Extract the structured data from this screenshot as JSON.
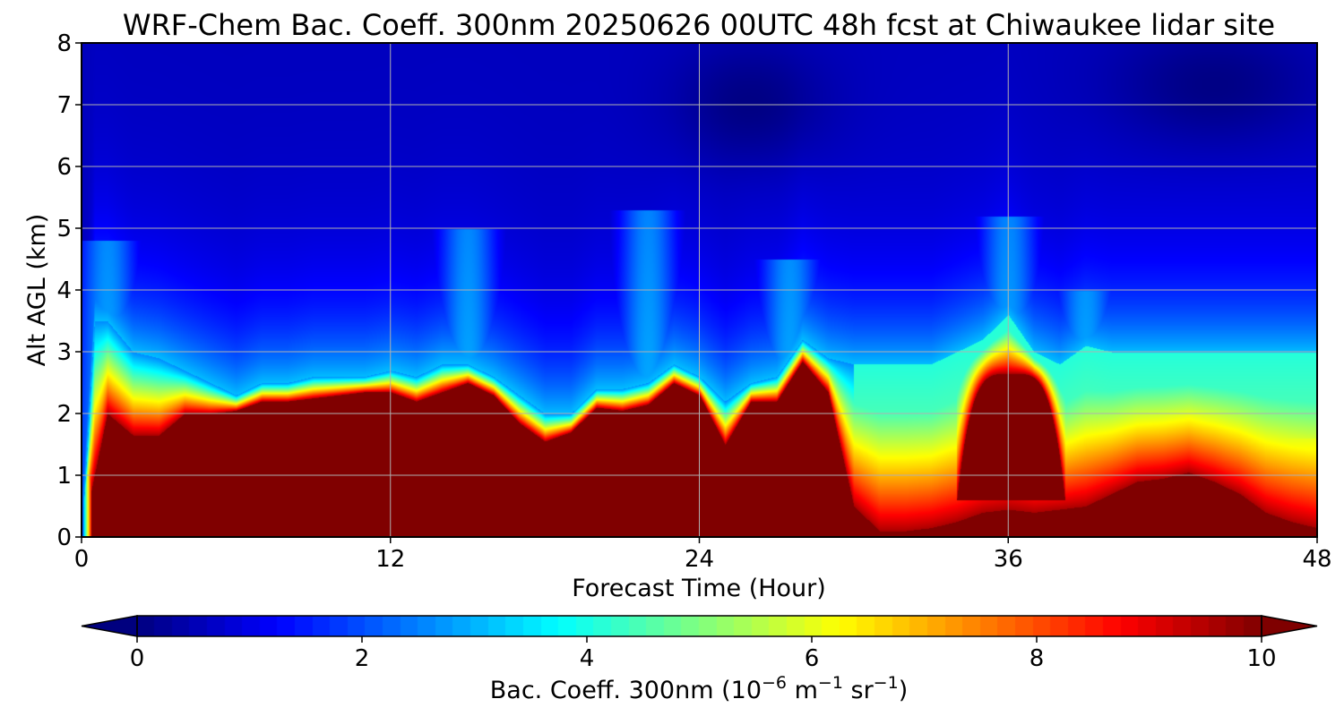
{
  "chart_data": {
    "type": "heatmap",
    "title": "WRF-Chem Bac. Coeff. 300nm  20250626 00UTC 48h fcst at Chiwaukee lidar site",
    "xlabel": "Forecast Time (Hour)",
    "ylabel": "Alt AGL (km)",
    "xlim": [
      0,
      48
    ],
    "ylim": [
      0,
      8
    ],
    "xticks": [
      0,
      12,
      24,
      36,
      48
    ],
    "yticks": [
      0,
      1,
      2,
      3,
      4,
      5,
      6,
      7,
      8
    ],
    "grid": true,
    "colormap": "jet",
    "colorbar": {
      "label_prefix": "Bac. Coeff. 300nm  (10",
      "label_exp1": "−6",
      "label_mid": " m",
      "label_exp2": "−1",
      "label_mid2": " sr",
      "label_exp3": "−1",
      "label_suffix": ")",
      "range": [
        0,
        10
      ],
      "ticks": [
        "0",
        "2",
        "4",
        "6",
        "8",
        "10"
      ],
      "extend": "both",
      "orientation": "horizontal-bottom"
    },
    "description_colors": {
      "low": "#00007f",
      "high": "#7f0000"
    },
    "x": [
      0,
      0.5,
      1,
      2,
      3,
      4,
      5,
      6,
      7,
      8,
      9,
      10,
      11,
      12,
      13,
      14,
      15,
      16,
      17,
      18,
      19,
      20,
      21,
      22,
      23,
      24,
      25,
      26,
      27,
      28,
      29,
      30,
      31,
      32,
      33,
      34,
      35,
      36,
      37,
      38,
      39,
      40,
      41,
      42,
      43,
      44,
      45,
      46,
      47,
      48
    ],
    "boundary_layer_top_km": [
      0.0,
      1.0,
      2.0,
      1.65,
      1.65,
      2.0,
      2.0,
      2.05,
      2.2,
      2.2,
      2.25,
      2.3,
      2.35,
      2.35,
      2.2,
      2.35,
      2.5,
      2.3,
      1.85,
      1.55,
      1.7,
      2.1,
      2.05,
      2.15,
      2.5,
      2.3,
      1.5,
      2.2,
      2.2,
      2.85,
      2.35,
      0.5,
      0.1,
      0.1,
      0.15,
      0.25,
      0.4,
      0.45,
      0.4,
      0.45,
      0.5,
      0.7,
      0.9,
      0.95,
      1.05,
      0.9,
      0.7,
      0.4,
      0.25,
      0.15
    ],
    "aerosol_envelope_km": [
      0.0,
      3.5,
      3.5,
      3.0,
      2.9,
      2.7,
      2.5,
      2.3,
      2.5,
      2.5,
      2.6,
      2.6,
      2.6,
      2.7,
      2.6,
      2.8,
      2.8,
      2.6,
      2.3,
      2.0,
      2.0,
      2.4,
      2.4,
      2.5,
      2.8,
      2.6,
      2.2,
      2.5,
      2.6,
      3.2,
      2.9,
      2.8,
      2.8,
      2.8,
      2.8,
      3.0,
      3.2,
      3.6,
      3.0,
      2.8,
      3.1,
      3.0,
      3.0,
      3.0,
      3.0,
      3.0,
      3.0,
      3.0,
      3.0,
      3.0
    ],
    "dome_36h": {
      "x_range_h": [
        34.0,
        38.2
      ],
      "top_km": 2.65,
      "bottom_km": 0.6
    },
    "upper_level_value_range": [
      0.5,
      2.0
    ]
  }
}
